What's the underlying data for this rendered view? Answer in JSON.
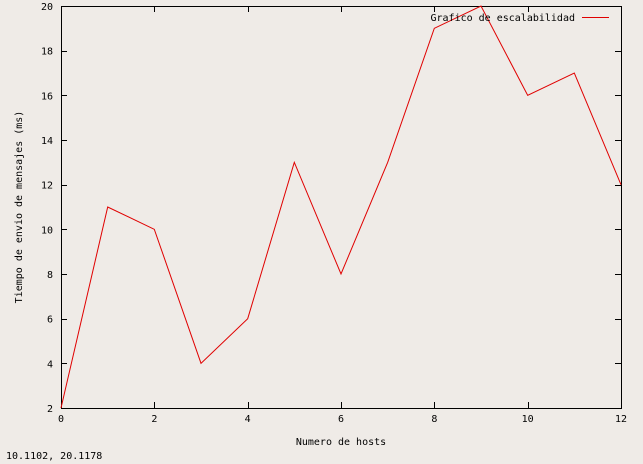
{
  "chart_data": {
    "type": "line",
    "title": "",
    "xlabel": "Numero de hosts",
    "ylabel": "Tiempo de envio de mensajes (ms)",
    "xlim": [
      0,
      12
    ],
    "ylim": [
      2,
      20
    ],
    "xticks": [
      0,
      2,
      4,
      6,
      8,
      10,
      12
    ],
    "yticks": [
      2,
      4,
      6,
      8,
      10,
      12,
      14,
      16,
      18,
      20
    ],
    "grid": false,
    "legend_position": "top-right",
    "series": [
      {
        "name": "Grafico de escalabilidad",
        "color": "#e00000",
        "x": [
          0,
          1,
          2,
          3,
          4,
          5,
          6,
          7,
          8,
          9,
          10,
          11,
          12
        ],
        "y": [
          2,
          11,
          10,
          4,
          6,
          13,
          8,
          13,
          19,
          20,
          16,
          17,
          12
        ]
      }
    ]
  },
  "status": {
    "coords": "10.1102,  20.1178"
  }
}
